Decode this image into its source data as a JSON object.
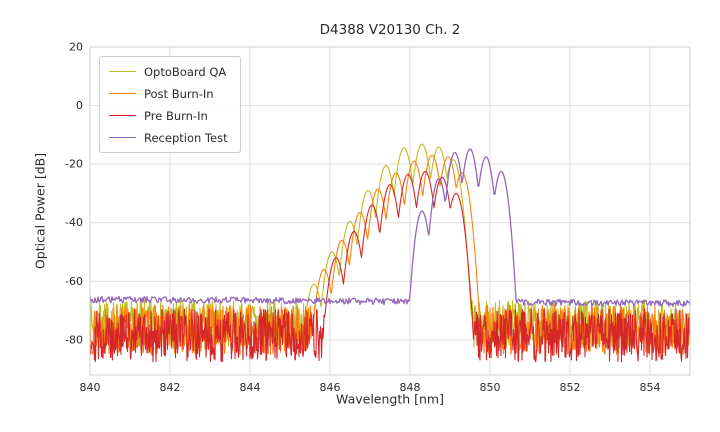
{
  "figure": {
    "background": "#ffffff",
    "text_color": "#2b2b2b",
    "grid_color": "#dddddd",
    "border_color": "#cfcfcf"
  },
  "chart_data": {
    "type": "line",
    "title": "D4388 V20130 Ch. 2",
    "xlabel": "Wavelength [nm]",
    "ylabel": "Optical Power [dB]",
    "xlim": [
      840,
      855
    ],
    "ylim": [
      -92,
      20
    ],
    "xticks": [
      840,
      842,
      844,
      846,
      848,
      850,
      852,
      854
    ],
    "yticks": [
      20,
      0,
      -20,
      -40,
      -60,
      -80
    ],
    "grid": true,
    "legend_position": "upper-left",
    "series": [
      {
        "name": "OptoBoard QA",
        "color": "#bcbd22",
        "noise_floor_db": -74.5,
        "noise_amplitude_db": 8.0,
        "floor_slope_db_per_nm": 0,
        "sample_step_nm": 0.0125,
        "seed": 7,
        "mode_falloff_db_per_nm2": 260,
        "line_width": 1.1,
        "peaks": [
          [
            845.6,
            -61
          ],
          [
            846.05,
            -50
          ],
          [
            846.5,
            -39.5
          ],
          [
            846.95,
            -29
          ],
          [
            847.4,
            -20.5
          ],
          [
            847.85,
            -14.5
          ],
          [
            848.3,
            -13.2
          ],
          [
            848.72,
            -14.2
          ],
          [
            849.08,
            -18.5
          ]
        ]
      },
      {
        "name": "Post Burn-In",
        "color": "#ff7f0e",
        "noise_floor_db": -76.5,
        "noise_amplitude_db": 8.5,
        "floor_slope_db_per_nm": 0,
        "sample_step_nm": 0.0125,
        "seed": 13,
        "mode_falloff_db_per_nm2": 260,
        "line_width": 1.1,
        "peaks": [
          [
            845.85,
            -56
          ],
          [
            846.3,
            -46
          ],
          [
            846.75,
            -36.5
          ],
          [
            847.2,
            -28.5
          ],
          [
            847.65,
            -23
          ],
          [
            848.1,
            -19
          ],
          [
            848.55,
            -17
          ],
          [
            848.95,
            -17.5
          ],
          [
            849.3,
            -23
          ]
        ]
      },
      {
        "name": "Pre Burn-In",
        "color": "#d62728",
        "noise_floor_db": -78.5,
        "noise_amplitude_db": 9.0,
        "floor_slope_db_per_nm": 0,
        "sample_step_nm": 0.0125,
        "seed": 29,
        "mode_falloff_db_per_nm2": 260,
        "line_width": 1.1,
        "peaks": [
          [
            846.15,
            -52
          ],
          [
            846.6,
            -43
          ],
          [
            847.05,
            -34
          ],
          [
            847.5,
            -27
          ],
          [
            847.95,
            -23.5
          ],
          [
            848.38,
            -22.5
          ],
          [
            848.8,
            -24.5
          ],
          [
            849.15,
            -30
          ]
        ]
      },
      {
        "name": "Reception Test",
        "color": "#9467bd",
        "noise_floor_db": -66.2,
        "noise_amplitude_db": 1.1,
        "floor_slope_db_per_nm": -0.09,
        "sample_step_nm": 0.025,
        "seed": 43,
        "mode_falloff_db_per_nm2": 320,
        "line_width": 1.3,
        "peaks": [
          [
            848.3,
            -36
          ],
          [
            848.72,
            -25
          ],
          [
            849.12,
            -16
          ],
          [
            849.5,
            -14.8
          ],
          [
            849.9,
            -17.5
          ],
          [
            850.28,
            -22.5
          ]
        ]
      }
    ]
  }
}
